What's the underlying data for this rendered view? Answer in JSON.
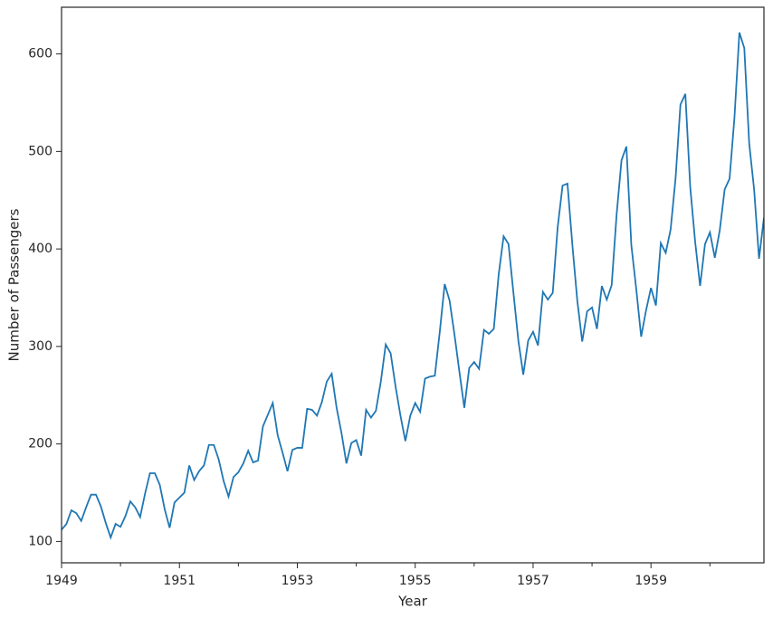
{
  "chart_data": {
    "type": "line",
    "x_label": "Year",
    "y_label": "Number of Passengers",
    "x": [
      "1949-01",
      "1949-02",
      "1949-03",
      "1949-04",
      "1949-05",
      "1949-06",
      "1949-07",
      "1949-08",
      "1949-09",
      "1949-10",
      "1949-11",
      "1949-12",
      "1950-01",
      "1950-02",
      "1950-03",
      "1950-04",
      "1950-05",
      "1950-06",
      "1950-07",
      "1950-08",
      "1950-09",
      "1950-10",
      "1950-11",
      "1950-12",
      "1951-01",
      "1951-02",
      "1951-03",
      "1951-04",
      "1951-05",
      "1951-06",
      "1951-07",
      "1951-08",
      "1951-09",
      "1951-10",
      "1951-11",
      "1951-12",
      "1952-01",
      "1952-02",
      "1952-03",
      "1952-04",
      "1952-05",
      "1952-06",
      "1952-07",
      "1952-08",
      "1952-09",
      "1952-10",
      "1952-11",
      "1952-12",
      "1953-01",
      "1953-02",
      "1953-03",
      "1953-04",
      "1953-05",
      "1953-06",
      "1953-07",
      "1953-08",
      "1953-09",
      "1953-10",
      "1953-11",
      "1953-12",
      "1954-01",
      "1954-02",
      "1954-03",
      "1954-04",
      "1954-05",
      "1954-06",
      "1954-07",
      "1954-08",
      "1954-09",
      "1954-10",
      "1954-11",
      "1954-12",
      "1955-01",
      "1955-02",
      "1955-03",
      "1955-04",
      "1955-05",
      "1955-06",
      "1955-07",
      "1955-08",
      "1955-09",
      "1955-10",
      "1955-11",
      "1955-12",
      "1956-01",
      "1956-02",
      "1956-03",
      "1956-04",
      "1956-05",
      "1956-06",
      "1956-07",
      "1956-08",
      "1956-09",
      "1956-10",
      "1956-11",
      "1956-12",
      "1957-01",
      "1957-02",
      "1957-03",
      "1957-04",
      "1957-05",
      "1957-06",
      "1957-07",
      "1957-08",
      "1957-09",
      "1957-10",
      "1957-11",
      "1957-12",
      "1958-01",
      "1958-02",
      "1958-03",
      "1958-04",
      "1958-05",
      "1958-06",
      "1958-07",
      "1958-08",
      "1958-09",
      "1958-10",
      "1958-11",
      "1958-12",
      "1959-01",
      "1959-02",
      "1959-03",
      "1959-04",
      "1959-05",
      "1959-06",
      "1959-07",
      "1959-08",
      "1959-09",
      "1959-10",
      "1959-11",
      "1959-12",
      "1960-01",
      "1960-02",
      "1960-03",
      "1960-04",
      "1960-05",
      "1960-06",
      "1960-07",
      "1960-08",
      "1960-09",
      "1960-10",
      "1960-11",
      "1960-12"
    ],
    "series": [
      {
        "color": "#1f77b4",
        "values": [
          112,
          118,
          132,
          129,
          121,
          135,
          148,
          148,
          136,
          119,
          104,
          118,
          115,
          126,
          141,
          135,
          125,
          149,
          170,
          170,
          158,
          133,
          114,
          140,
          145,
          150,
          178,
          163,
          172,
          178,
          199,
          199,
          184,
          162,
          146,
          166,
          171,
          180,
          193,
          181,
          183,
          218,
          230,
          242,
          209,
          191,
          172,
          194,
          196,
          196,
          236,
          235,
          229,
          243,
          264,
          272,
          237,
          211,
          180,
          201,
          204,
          188,
          235,
          227,
          234,
          264,
          302,
          293,
          259,
          229,
          203,
          229,
          242,
          233,
          267,
          269,
          270,
          315,
          364,
          347,
          312,
          274,
          237,
          278,
          284,
          277,
          317,
          313,
          318,
          374,
          413,
          405,
          355,
          306,
          271,
          306,
          315,
          301,
          356,
          348,
          355,
          422,
          465,
          467,
          404,
          347,
          305,
          336,
          340,
          318,
          362,
          348,
          363,
          435,
          491,
          505,
          404,
          359,
          310,
          337,
          360,
          342,
          406,
          396,
          420,
          472,
          548,
          559,
          463,
          407,
          362,
          405,
          417,
          391,
          419,
          461,
          472,
          535,
          622,
          606,
          508,
          461,
          390,
          432
        ]
      }
    ],
    "xlim": [
      "1949-01",
      "1960-12"
    ],
    "xticks": [
      1949,
      1951,
      1953,
      1955,
      1957,
      1959
    ],
    "xminorticks": [
      1950,
      1952,
      1954,
      1956,
      1958,
      1960
    ],
    "ylim": [
      78.1,
      647.9
    ],
    "yticks": [
      100,
      200,
      300,
      400,
      500,
      600
    ],
    "grid": false
  }
}
